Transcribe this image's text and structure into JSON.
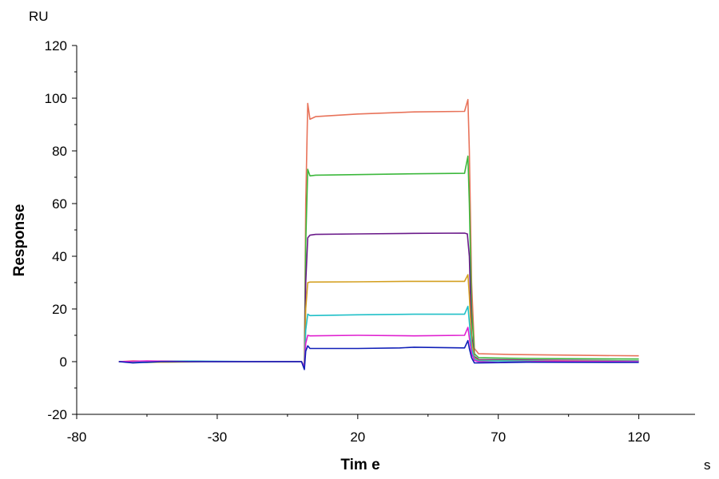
{
  "chart_data": {
    "type": "line",
    "title": "",
    "xlabel": "Tim e",
    "ylabel": "Response",
    "x_unit": "s",
    "y_unit": "RU",
    "xlim": [
      -80,
      140
    ],
    "ylim": [
      -20,
      120
    ],
    "x_ticks": [
      -80,
      -30,
      20,
      70,
      120
    ],
    "y_ticks": [
      -20,
      0,
      20,
      40,
      60,
      80,
      100,
      120
    ],
    "grid": false,
    "legend": "none",
    "series": [
      {
        "color": "#e8735a",
        "points": [
          [
            -65,
            0
          ],
          [
            -60,
            0.3
          ],
          [
            -50,
            0
          ],
          [
            -40,
            0.2
          ],
          [
            -30,
            0
          ],
          [
            -10,
            0
          ],
          [
            0,
            0
          ],
          [
            0.5,
            -1.2
          ],
          [
            1,
            -2.5
          ],
          [
            1.5,
            60
          ],
          [
            2.2,
            98
          ],
          [
            3,
            92
          ],
          [
            5,
            93
          ],
          [
            20,
            94
          ],
          [
            40,
            94.8
          ],
          [
            58,
            95
          ],
          [
            59.2,
            99.5
          ],
          [
            59.7,
            80
          ],
          [
            60.5,
            30
          ],
          [
            61.5,
            5
          ],
          [
            63,
            3
          ],
          [
            75,
            2.7
          ],
          [
            100,
            2.4
          ],
          [
            120,
            2.2
          ]
        ]
      },
      {
        "color": "#3cb83c",
        "points": [
          [
            -65,
            0
          ],
          [
            -55,
            -0.3
          ],
          [
            -40,
            0
          ],
          [
            -10,
            0
          ],
          [
            0,
            0
          ],
          [
            0.5,
            -1
          ],
          [
            1,
            -2
          ],
          [
            1.5,
            45
          ],
          [
            2.2,
            73
          ],
          [
            3,
            70.5
          ],
          [
            5,
            70.8
          ],
          [
            20,
            71
          ],
          [
            40,
            71.3
          ],
          [
            58,
            71.5
          ],
          [
            59.2,
            78
          ],
          [
            59.7,
            60
          ],
          [
            60.5,
            20
          ],
          [
            61.5,
            3
          ],
          [
            63,
            1.5
          ],
          [
            80,
            1.2
          ],
          [
            120,
            1
          ]
        ]
      },
      {
        "color": "#6a1a8a",
        "points": [
          [
            -65,
            0
          ],
          [
            -50,
            0.2
          ],
          [
            -30,
            0
          ],
          [
            -10,
            0
          ],
          [
            0,
            0
          ],
          [
            0.5,
            -1
          ],
          [
            1,
            -2
          ],
          [
            1.5,
            30
          ],
          [
            2.2,
            47
          ],
          [
            3,
            48
          ],
          [
            5,
            48.3
          ],
          [
            20,
            48.5
          ],
          [
            40,
            48.7
          ],
          [
            58,
            48.8
          ],
          [
            59,
            48.5
          ],
          [
            59.7,
            40
          ],
          [
            60.5,
            10
          ],
          [
            61.5,
            2
          ],
          [
            63,
            0.8
          ],
          [
            120,
            0.3
          ]
        ]
      },
      {
        "color": "#d4a020",
        "points": [
          [
            -65,
            0
          ],
          [
            -50,
            -0.2
          ],
          [
            -30,
            0
          ],
          [
            0,
            0
          ],
          [
            0.5,
            -1
          ],
          [
            1,
            -2
          ],
          [
            1.5,
            20
          ],
          [
            2.2,
            30
          ],
          [
            3,
            30.2
          ],
          [
            20,
            30.3
          ],
          [
            40,
            30.5
          ],
          [
            58,
            30.5
          ],
          [
            59.2,
            33
          ],
          [
            59.7,
            25
          ],
          [
            60.5,
            8
          ],
          [
            61.5,
            1.5
          ],
          [
            63,
            0.5
          ],
          [
            120,
            0.3
          ]
        ]
      },
      {
        "color": "#20c0c8",
        "points": [
          [
            -65,
            0
          ],
          [
            -40,
            0.2
          ],
          [
            -10,
            0
          ],
          [
            0,
            0
          ],
          [
            0.5,
            -1
          ],
          [
            1,
            -2
          ],
          [
            1.5,
            12
          ],
          [
            2.2,
            18
          ],
          [
            3,
            17.5
          ],
          [
            20,
            17.8
          ],
          [
            40,
            18
          ],
          [
            58,
            18
          ],
          [
            59.2,
            21
          ],
          [
            59.7,
            15
          ],
          [
            60.5,
            5
          ],
          [
            61.5,
            1
          ],
          [
            63,
            0.3
          ],
          [
            120,
            0.2
          ]
        ]
      },
      {
        "color": "#e020d0",
        "points": [
          [
            -65,
            0
          ],
          [
            -55,
            0.3
          ],
          [
            -40,
            0
          ],
          [
            0,
            0
          ],
          [
            0.5,
            -1
          ],
          [
            1,
            -2
          ],
          [
            1.5,
            7
          ],
          [
            2.2,
            10
          ],
          [
            3,
            9.8
          ],
          [
            20,
            10
          ],
          [
            40,
            9.8
          ],
          [
            58,
            10
          ],
          [
            59.2,
            13
          ],
          [
            59.7,
            9
          ],
          [
            60.5,
            3
          ],
          [
            61.5,
            0.5
          ],
          [
            63,
            0
          ],
          [
            70,
            -0.3
          ],
          [
            90,
            0.2
          ],
          [
            120,
            0
          ]
        ]
      },
      {
        "color": "#1020b8",
        "points": [
          [
            -65,
            0
          ],
          [
            -60,
            -0.5
          ],
          [
            -50,
            0
          ],
          [
            -30,
            0
          ],
          [
            0,
            0
          ],
          [
            0.5,
            -1.5
          ],
          [
            1,
            -3
          ],
          [
            1.5,
            4
          ],
          [
            2.2,
            6
          ],
          [
            3,
            5
          ],
          [
            20,
            5
          ],
          [
            35,
            5.2
          ],
          [
            40,
            5.5
          ],
          [
            58,
            5.2
          ],
          [
            59.2,
            8
          ],
          [
            59.7,
            5
          ],
          [
            60.5,
            1.5
          ],
          [
            61.5,
            -0.5
          ],
          [
            63,
            -0.5
          ],
          [
            80,
            -0.2
          ],
          [
            120,
            -0.3
          ]
        ]
      }
    ]
  }
}
